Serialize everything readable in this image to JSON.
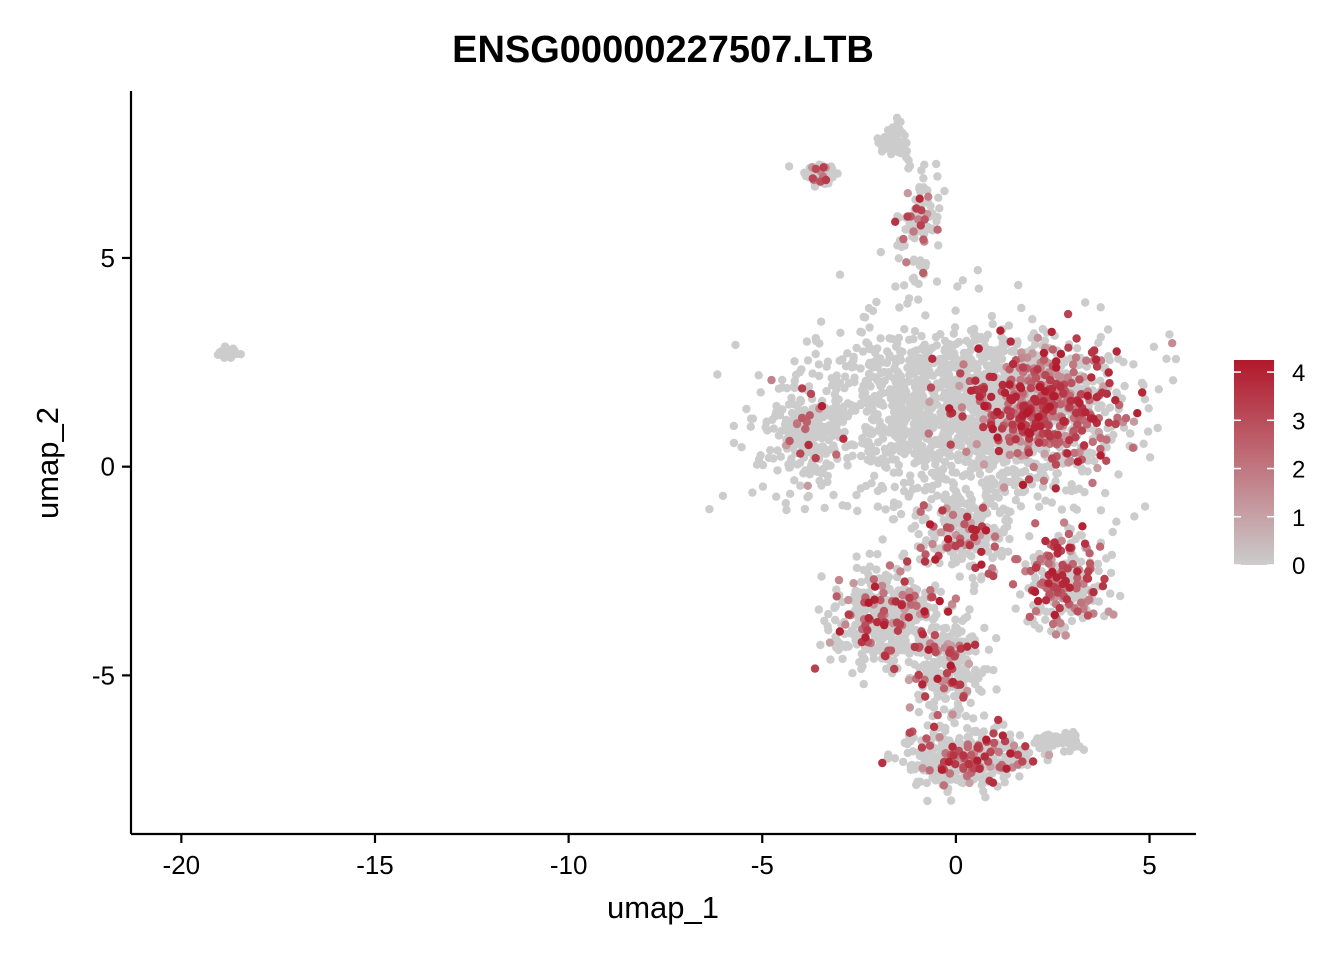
{
  "chart_data": {
    "type": "scatter",
    "title": "ENSG00000227507.LTB",
    "xlabel": "umap_1",
    "ylabel": "umap_2",
    "xlim": [
      -21.3,
      6.2
    ],
    "ylim": [
      -8.8,
      9.0
    ],
    "x_ticks": [
      -20,
      -15,
      -10,
      -5,
      0,
      5
    ],
    "x_tick_labels": [
      "-20",
      "-15",
      "-10",
      "-5",
      "0",
      "5"
    ],
    "y_ticks": [
      5,
      0,
      -5
    ],
    "y_tick_labels": [
      "5",
      "0",
      "-5"
    ],
    "grid": false,
    "legend_position": "right",
    "color_low": "#cccccc",
    "color_high": "#b2182b",
    "color_range": [
      0,
      4.25
    ],
    "legend_ticks": [
      4,
      3,
      2,
      1,
      0
    ],
    "legend_tick_labels": [
      "4",
      "3",
      "2",
      "1",
      "0"
    ],
    "regions": [
      {
        "name": "small isolated cluster",
        "center": [
          -18.8,
          2.75
        ],
        "spread": [
          0.22,
          0.14
        ],
        "n": 30,
        "expr_prob": 0.0
      },
      {
        "name": "top cluster A",
        "center": [
          -1.6,
          7.8
        ],
        "spread": [
          0.35,
          0.35
        ],
        "n": 60,
        "expr_prob": 0.05
      },
      {
        "name": "top cluster B",
        "center": [
          -3.5,
          7.0
        ],
        "spread": [
          0.35,
          0.25
        ],
        "n": 60,
        "expr_prob": 0.25
      },
      {
        "name": "top stalk",
        "center": [
          -0.9,
          5.8
        ],
        "spread": [
          0.45,
          1.0
        ],
        "n": 90,
        "expr_prob": 0.22
      },
      {
        "name": "upper body core",
        "center": [
          0.0,
          1.3
        ],
        "spread": [
          3.6,
          2.0
        ],
        "n": 1500,
        "expr_prob": 0.0
      },
      {
        "name": "upper body right (high expression)",
        "center": [
          2.2,
          1.4
        ],
        "spread": [
          1.7,
          1.3
        ],
        "n": 650,
        "expr_prob": 0.62
      },
      {
        "name": "upper body left edge",
        "center": [
          -3.9,
          0.8
        ],
        "spread": [
          0.8,
          1.0
        ],
        "n": 200,
        "expr_prob": 0.08
      },
      {
        "name": "middle bridge",
        "center": [
          0.2,
          -1.6
        ],
        "spread": [
          1.0,
          0.9
        ],
        "n": 220,
        "expr_prob": 0.25
      },
      {
        "name": "lower right lobe",
        "center": [
          2.8,
          -2.8
        ],
        "spread": [
          0.9,
          1.0
        ],
        "n": 260,
        "expr_prob": 0.45
      },
      {
        "name": "lower left lobe",
        "center": [
          -1.8,
          -3.6
        ],
        "spread": [
          1.2,
          1.1
        ],
        "n": 420,
        "expr_prob": 0.2
      },
      {
        "name": "lower center",
        "center": [
          -0.2,
          -4.8
        ],
        "spread": [
          0.9,
          1.2
        ],
        "n": 260,
        "expr_prob": 0.2
      },
      {
        "name": "bottom",
        "center": [
          0.3,
          -7.0
        ],
        "spread": [
          1.4,
          0.6
        ],
        "n": 380,
        "expr_prob": 0.2
      },
      {
        "name": "bottom right tail",
        "center": [
          2.6,
          -6.6
        ],
        "spread": [
          0.6,
          0.25
        ],
        "n": 70,
        "expr_prob": 0.0
      }
    ]
  }
}
